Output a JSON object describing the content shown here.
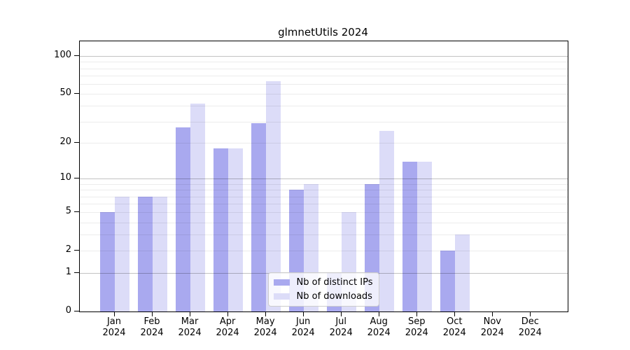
{
  "title": "glmnetUtils 2024",
  "chart_data": {
    "type": "bar",
    "title": "glmnetUtils 2024",
    "categories": [
      "Jan 2024",
      "Feb 2024",
      "Mar 2024",
      "Apr 2024",
      "May 2024",
      "Jun 2024",
      "Jul 2024",
      "Aug 2024",
      "Sep 2024",
      "Oct 2024",
      "Nov 2024",
      "Dec 2024"
    ],
    "series": [
      {
        "name": "Nb of distinct IPs",
        "color": "#a9a9ef",
        "values": [
          5,
          7,
          27,
          18,
          29,
          8,
          1,
          9,
          14,
          2,
          0,
          0
        ]
      },
      {
        "name": "Nb of downloads",
        "color": "#dcdcf8",
        "values": [
          7,
          7,
          42,
          18,
          63,
          9,
          5,
          25,
          14,
          3,
          0,
          0
        ]
      }
    ],
    "xlabel": "",
    "ylabel": "",
    "y_axis": {
      "scale": "log1p",
      "ticks": [
        0,
        1,
        2,
        5,
        10,
        20,
        50,
        100
      ],
      "top": 131,
      "minor_gridlines": [
        2,
        3,
        4,
        5,
        6,
        7,
        8,
        9,
        20,
        30,
        40,
        50,
        60,
        70,
        80,
        90
      ],
      "major_gridlines": [
        1,
        10,
        100
      ]
    },
    "grid": "both",
    "legend_position": "lower center",
    "colors": {
      "distinct_ips": "#a9a9ef",
      "downloads": "#dcdcf8"
    }
  }
}
